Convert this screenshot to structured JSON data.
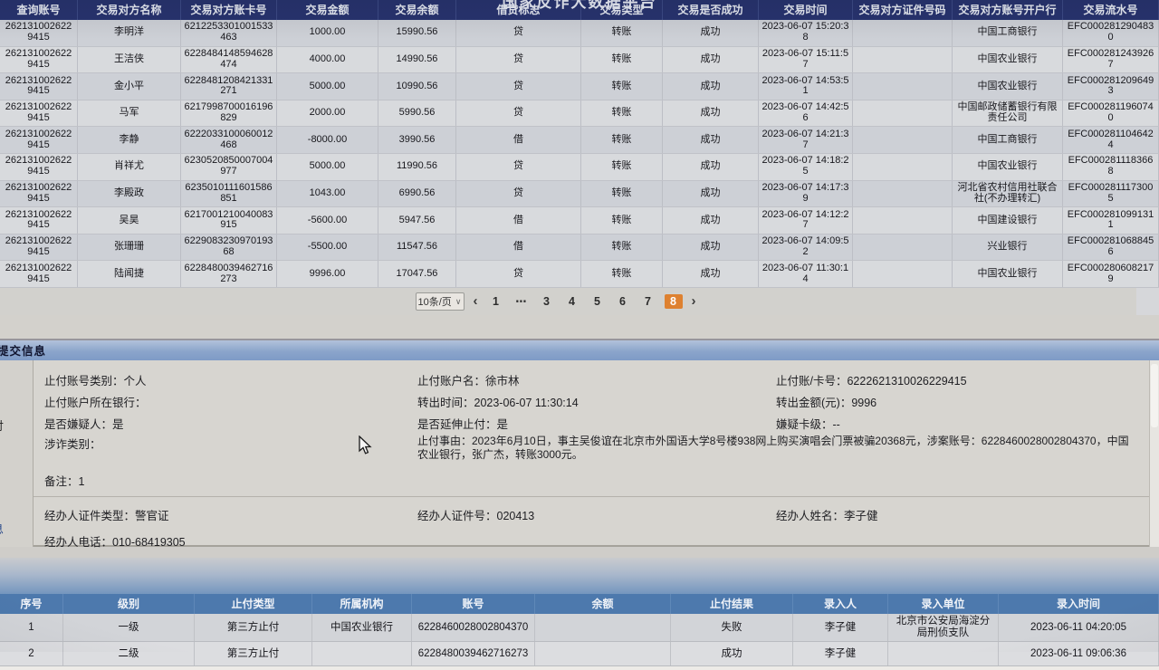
{
  "platform_title": "国家反诈大数据平台",
  "top_table": {
    "columns": [
      "查询账号",
      "交易对方名称",
      "交易对方账卡号",
      "交易金额",
      "交易余额",
      "借贷标志",
      "交易类型",
      "交易是否成功",
      "交易时间",
      "交易对方证件号码",
      "交易对方账号开户行",
      "交易流水号"
    ],
    "rows": [
      [
        "2621310026229415",
        "李明洋",
        "6212253301001533463",
        "1000.00",
        "15990.56",
        "贷",
        "转账",
        "成功",
        "2023-06-07 15:20:38",
        "",
        "中国工商银行",
        "EFC0002812904830"
      ],
      [
        "2621310026229415",
        "王洁侠",
        "6228484148594628474",
        "4000.00",
        "14990.56",
        "贷",
        "转账",
        "成功",
        "2023-06-07 15:11:57",
        "",
        "中国农业银行",
        "EFC0002812439267"
      ],
      [
        "2621310026229415",
        "金小平",
        "6228481208421331271",
        "5000.00",
        "10990.56",
        "贷",
        "转账",
        "成功",
        "2023-06-07 14:53:51",
        "",
        "中国农业银行",
        "EFC0002812096493"
      ],
      [
        "2621310026229415",
        "马军",
        "6217998700016196829",
        "2000.00",
        "5990.56",
        "贷",
        "转账",
        "成功",
        "2023-06-07 14:42:56",
        "",
        "中国邮政储蓄银行有限责任公司",
        "EFC0002811960740"
      ],
      [
        "2621310026229415",
        "李静",
        "6222033100060012468",
        "-8000.00",
        "3990.56",
        "借",
        "转账",
        "成功",
        "2023-06-07 14:21:37",
        "",
        "中国工商银行",
        "EFC0002811046424"
      ],
      [
        "2621310026229415",
        "肖祥尤",
        "6230520850007004977",
        "5000.00",
        "11990.56",
        "贷",
        "转账",
        "成功",
        "2023-06-07 14:18:25",
        "",
        "中国农业银行",
        "EFC0002811183668"
      ],
      [
        "2621310026229415",
        "李殿政",
        "6235010111601586851",
        "1043.00",
        "6990.56",
        "贷",
        "转账",
        "成功",
        "2023-06-07 14:17:39",
        "",
        "河北省农村信用社联合社(不办理转汇)",
        "EFC0002811173005"
      ],
      [
        "2621310026229415",
        "吴昊",
        "6217001210040083915",
        "-5600.00",
        "5947.56",
        "借",
        "转账",
        "成功",
        "2023-06-07 14:12:27",
        "",
        "中国建设银行",
        "EFC0002810991311"
      ],
      [
        "2621310026229415",
        "张珊珊",
        "622908323097019368",
        "-5500.00",
        "11547.56",
        "借",
        "转账",
        "成功",
        "2023-06-07 14:09:52",
        "",
        "兴业银行",
        "EFC0002810688456"
      ],
      [
        "2621310026229415",
        "陆闻捷",
        "6228480039462716273",
        "9996.00",
        "17047.56",
        "贷",
        "转账",
        "成功",
        "2023-06-07 11:30:14",
        "",
        "中国农业银行",
        "EFC0002806082179"
      ]
    ]
  },
  "pagination": {
    "page_size_label": "10条/页",
    "prev": "‹",
    "pages": [
      "1",
      "⋯",
      "3",
      "4",
      "5",
      "6",
      "7",
      "8"
    ],
    "active_page": "8",
    "next": "›"
  },
  "submit_section": {
    "title": "提交信息",
    "left_partials": [
      "付",
      "息"
    ],
    "row1": [
      "止付账号类别：个人",
      "止付账户名：徐市林",
      "止付账/卡号：6222621310026229415"
    ],
    "row2": [
      "止付账户所在银行：",
      "转出时间：2023-06-07 11:30:14",
      "转出金额(元)：9996"
    ],
    "row3": [
      "是否嫌疑人：是",
      "是否延伸止付：是",
      "嫌疑卡级：--"
    ],
    "fraud_type_label": "涉诈类别：",
    "stop_reason": "止付事由：2023年6月10日，事主吴俊谊在北京市外国语大学8号楼938网上购买演唱会门票被骗20368元，涉案账号：6228460028002804370，中国农业银行，张广杰，转账3000元。",
    "remark": "备注：1",
    "officer_row": [
      "经办人证件类型：警官证",
      "经办人证件号：020413",
      "经办人姓名：李子健"
    ],
    "officer_phone": "经办人电话：010-68419305",
    "bottom_bar_partial": "▍"
  },
  "bottom_table": {
    "columns": [
      "序号",
      "级别",
      "止付类型",
      "所属机构",
      "账号",
      "余额",
      "止付结果",
      "录入人",
      "录入单位",
      "录入时间"
    ],
    "rows": [
      [
        "1",
        "一级",
        "第三方止付",
        "中国农业银行",
        "6228460028002804370",
        "",
        "失败",
        "李子健",
        "北京市公安局海淀分局刑侦支队",
        "2023-06-11 04:20:05"
      ],
      [
        "2",
        "二级",
        "第三方止付",
        "",
        "6228480039462716273",
        "",
        "成功",
        "李子健",
        "",
        "2023-06-11 09:06:36"
      ]
    ]
  }
}
